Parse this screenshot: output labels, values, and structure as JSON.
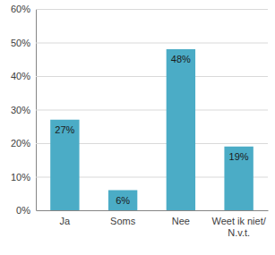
{
  "chart_data": {
    "type": "bar",
    "categories": [
      "Ja",
      "Soms",
      "Nee",
      "Weet ik niet/ N.v.t."
    ],
    "values": [
      27,
      6,
      48,
      19
    ],
    "value_labels": [
      "27%",
      "6%",
      "48%",
      "19%"
    ],
    "data_labels": true,
    "color": "#4bacc6",
    "ylim": [
      0,
      60
    ],
    "yticks": [
      {
        "value": 0,
        "label": "0%"
      },
      {
        "value": 10,
        "label": "10%"
      },
      {
        "value": 20,
        "label": "20%"
      },
      {
        "value": 30,
        "label": "30%"
      },
      {
        "value": 40,
        "label": "40%"
      },
      {
        "value": 50,
        "label": "50%"
      },
      {
        "value": 60,
        "label": "60%"
      }
    ],
    "grid": true
  }
}
